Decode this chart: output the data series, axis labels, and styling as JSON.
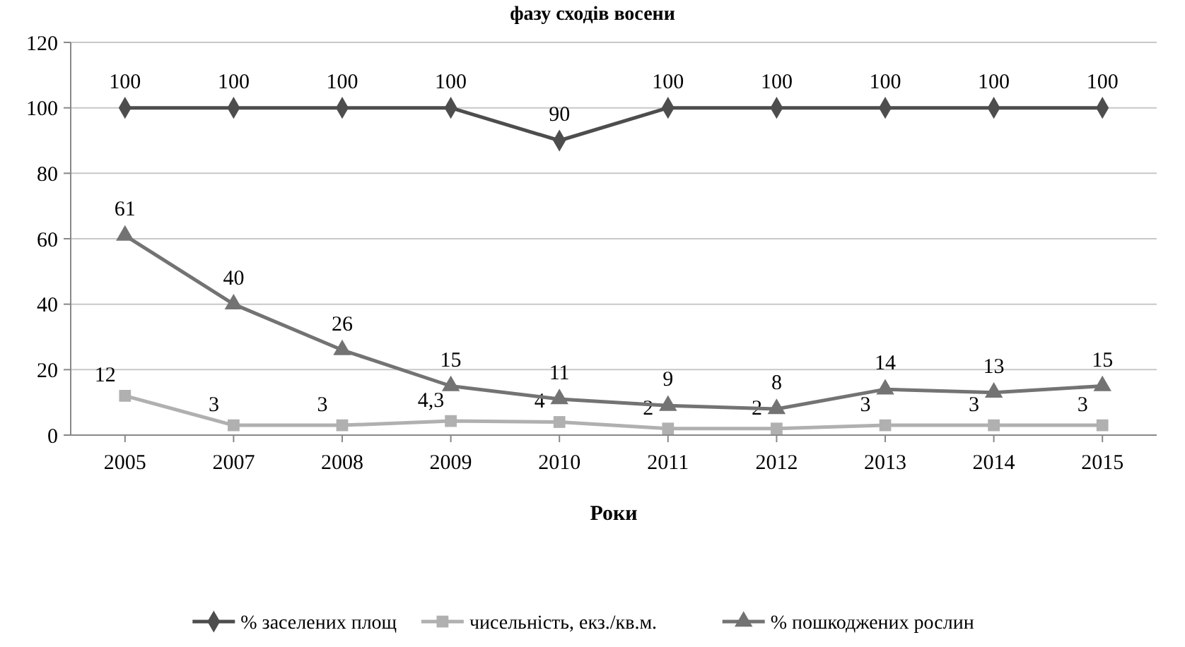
{
  "chart_data": {
    "type": "line",
    "title": "фазу сходів восени",
    "xlabel": "Роки",
    "categories": [
      "2005",
      "2007",
      "2008",
      "2009",
      "2010",
      "2011",
      "2012",
      "2013",
      "2014",
      "2015"
    ],
    "series": [
      {
        "name": "% заселених площ",
        "color": "#4d4d4d",
        "marker": "diamond",
        "values": [
          100,
          100,
          100,
          100,
          90,
          100,
          100,
          100,
          100,
          100
        ],
        "value_labels": [
          "100",
          "100",
          "100",
          "100",
          "90",
          "100",
          "100",
          "100",
          "100",
          "100"
        ]
      },
      {
        "name": "чисельність, екз./кв.м.",
        "color": "#b0b0b0",
        "marker": "square",
        "values": [
          12,
          3,
          3,
          4.3,
          4,
          2,
          2,
          3,
          3,
          3
        ],
        "value_labels": [
          "12",
          "3",
          "3",
          "4,3",
          "4",
          "2",
          "2",
          "3",
          "3",
          "3"
        ]
      },
      {
        "name": "% пошкоджених рослин",
        "color": "#737373",
        "marker": "triangle",
        "values": [
          61,
          40,
          26,
          15,
          11,
          9,
          8,
          14,
          13,
          15
        ],
        "value_labels": [
          "61",
          "40",
          "26",
          "15",
          "11",
          "9",
          "8",
          "14",
          "13",
          "15"
        ]
      }
    ],
    "ylim": [
      0,
      120
    ],
    "yticks": [
      0,
      20,
      40,
      60,
      80,
      100,
      120
    ],
    "grid": "y",
    "legend": "bottom",
    "line_style": "solid"
  }
}
